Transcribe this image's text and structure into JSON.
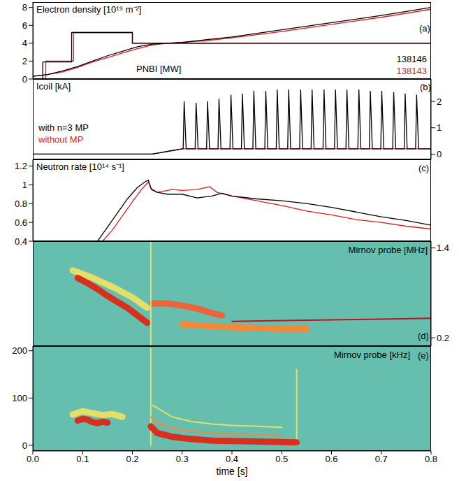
{
  "chart_data": [
    {
      "type": "line",
      "title": "Electron density [10¹⁹ m⁻²]",
      "annotations": [
        "(a)",
        "PNBI [MW]"
      ],
      "legend": "lower right",
      "tick_labels": "y",
      "xlim": [
        0,
        0.8
      ],
      "xticks": [
        {
          "value": 0,
          "label": "0.0"
        },
        0.1,
        0.2,
        0.3,
        0.4,
        0.5,
        0.6,
        0.7,
        0.8
      ],
      "ylim": [
        0,
        8.6
      ],
      "yticks": [
        0,
        2,
        4,
        6,
        8
      ],
      "series": [
        {
          "name": "138146",
          "color": "#000000",
          "line_style": "solid",
          "x": [
            0,
            0.03,
            0.06,
            0.09,
            0.12,
            0.15,
            0.18,
            0.21,
            0.24,
            0.27,
            0.3,
            0.35,
            0.4,
            0.5,
            0.6,
            0.7,
            0.8
          ],
          "values": [
            0.3,
            0.5,
            0.9,
            1.4,
            2.0,
            2.6,
            3.1,
            3.6,
            3.9,
            4.0,
            4.1,
            4.4,
            4.7,
            5.5,
            6.3,
            7.1,
            8.0
          ]
        },
        {
          "name": "138143",
          "color": "#e41a1c",
          "line_style": "solid",
          "x": [
            0,
            0.03,
            0.06,
            0.09,
            0.12,
            0.15,
            0.18,
            0.21,
            0.24,
            0.27,
            0.3,
            0.35,
            0.4,
            0.5,
            0.6,
            0.7,
            0.8
          ],
          "values": [
            0.3,
            0.5,
            0.8,
            1.3,
            1.9,
            2.4,
            2.9,
            3.4,
            3.8,
            4.0,
            4.1,
            4.3,
            4.6,
            5.3,
            6.1,
            6.9,
            7.8
          ]
        },
        {
          "name": "138146",
          "color": "#000000",
          "line_style": "solid",
          "x": [
            0,
            0.02,
            0.02,
            0.078,
            0.078,
            0.2,
            0.2,
            0.8
          ],
          "values": [
            0,
            0,
            1.9,
            1.9,
            5.2,
            5.2,
            4,
            4
          ]
        },
        {
          "name": "138143",
          "color": "#e41a1c",
          "line_style": "solid",
          "x": [
            0,
            0.026,
            0.026,
            0.082,
            0.082,
            0.2,
            0.2,
            0.8
          ],
          "values": [
            0,
            0,
            2,
            2,
            5.2,
            5.2,
            4,
            4
          ]
        }
      ]
    },
    {
      "type": "line",
      "title": "Icoil [kA]",
      "annotations": [
        "(b)"
      ],
      "legend": "lower left",
      "tick_labels": "y",
      "xlim": [
        0,
        0.8
      ],
      "xticks": [
        {
          "value": 0,
          "label": "0.0"
        },
        0.1,
        0.2,
        0.3,
        0.4,
        0.5,
        0.6,
        0.7,
        0.8
      ],
      "y2lim": [
        -0.2,
        2.85
      ],
      "y2ticks": [
        0,
        1,
        2
      ],
      "series": [
        {
          "name": "with n=3 MP",
          "color": "#000000",
          "line_style": "solid",
          "axis": "y2",
          "x": [
            0,
            0.24,
            0.3,
            0.302,
            0.304,
            0.308,
            0.326,
            0.328,
            0.332,
            0.349,
            0.351,
            0.355,
            0.372,
            0.374,
            0.378,
            0.396,
            0.398,
            0.402,
            0.419,
            0.421,
            0.425,
            0.442,
            0.444,
            0.448,
            0.466,
            0.468,
            0.472,
            0.489,
            0.491,
            0.495,
            0.512,
            0.514,
            0.518,
            0.536,
            0.538,
            0.542,
            0.559,
            0.561,
            0.565,
            0.583,
            0.585,
            0.589,
            0.606,
            0.608,
            0.612,
            0.629,
            0.631,
            0.635,
            0.653,
            0.655,
            0.659,
            0.676,
            0.678,
            0.682,
            0.699,
            0.701,
            0.705,
            0.723,
            0.725,
            0.729,
            0.746,
            0.748,
            0.752,
            0.769,
            0.771,
            0.775,
            0.8
          ],
          "values": [
            0,
            0,
            0.2,
            0.2,
            2.0,
            0.2,
            0.2,
            1.95,
            0.2,
            0.2,
            2.0,
            0.2,
            0.2,
            2.1,
            0.2,
            0.2,
            2.25,
            0.2,
            0.2,
            2.3,
            0.2,
            0.2,
            2.4,
            0.2,
            0.2,
            2.4,
            0.2,
            0.2,
            2.45,
            0.2,
            0.2,
            2.45,
            0.2,
            0.2,
            2.45,
            0.2,
            0.2,
            2.45,
            0.2,
            0.2,
            2.45,
            0.2,
            0.2,
            2.45,
            0.2,
            0.2,
            2.45,
            0.2,
            0.2,
            2.45,
            0.2,
            0.2,
            2.4,
            0.2,
            0.2,
            2.4,
            0.2,
            0.2,
            2.35,
            0.2,
            0.2,
            2.3,
            0.2,
            0.2,
            2.25,
            0.2,
            0.2
          ]
        },
        {
          "name": "without MP",
          "color": "#e41a1c",
          "line_style": "solid",
          "axis": "y2",
          "x": [
            0,
            0.24,
            0.3,
            0.8
          ],
          "values": [
            0,
            0,
            0.2,
            0.2
          ]
        }
      ]
    },
    {
      "type": "line",
      "title": "Neutron rate [10¹⁴ s⁻¹]",
      "annotations": [
        "(c)"
      ],
      "tick_labels": "y",
      "xlim": [
        0,
        0.8
      ],
      "xticks": [
        {
          "value": 0,
          "label": "0.0"
        },
        0.1,
        0.2,
        0.3,
        0.4,
        0.5,
        0.6,
        0.7,
        0.8
      ],
      "ylim": [
        0.4,
        1.27
      ],
      "yticks": [
        0.4,
        0.6,
        0.8,
        1,
        1.2
      ],
      "series": [
        {
          "name": "138146",
          "color": "#000000",
          "line_style": "solid",
          "x": [
            0.13,
            0.15,
            0.17,
            0.19,
            0.21,
            0.225,
            0.232,
            0.238,
            0.25,
            0.27,
            0.3,
            0.33,
            0.36,
            0.38,
            0.4,
            0.45,
            0.5,
            0.55,
            0.6,
            0.65,
            0.7,
            0.75,
            0.8
          ],
          "values": [
            0.4,
            0.55,
            0.7,
            0.85,
            0.97,
            1.03,
            1.05,
            0.95,
            0.92,
            0.9,
            0.9,
            0.86,
            0.88,
            0.91,
            0.88,
            0.85,
            0.83,
            0.8,
            0.76,
            0.71,
            0.66,
            0.62,
            0.57
          ]
        },
        {
          "name": "138143",
          "color": "#e41a1c",
          "line_style": "solid",
          "x": [
            0.14,
            0.16,
            0.18,
            0.2,
            0.22,
            0.232,
            0.238,
            0.25,
            0.28,
            0.3,
            0.33,
            0.355,
            0.37,
            0.4,
            0.45,
            0.5,
            0.55,
            0.6,
            0.65,
            0.7,
            0.75,
            0.8
          ],
          "values": [
            0.4,
            0.52,
            0.67,
            0.82,
            0.96,
            1.03,
            0.96,
            0.92,
            0.95,
            0.94,
            0.95,
            0.98,
            0.92,
            0.88,
            0.83,
            0.78,
            0.72,
            0.68,
            0.63,
            0.6,
            0.56,
            0.53
          ]
        }
      ]
    },
    {
      "type": "spectrogram",
      "title": "Mirnov probe [MHz]",
      "annotations": [
        "(d)"
      ],
      "tick_labels": "y",
      "xlim": [
        0,
        0.8
      ],
      "xticks": [
        {
          "value": 0,
          "label": "0.0"
        },
        0.1,
        0.2,
        0.3,
        0.4,
        0.5,
        0.6,
        0.7,
        0.8
      ],
      "y2lim": [
        0.09,
        1.49
      ],
      "y2ticks": [
        0.2,
        1.4
      ],
      "series": [
        {
          "color": "#e3df6a",
          "line_style": "band",
          "axis": "y2",
          "x": [
            0.08,
            0.12,
            0.16,
            0.2,
            0.23
          ],
          "values": [
            1.1,
            1.0,
            0.88,
            0.74,
            0.6
          ]
        },
        {
          "color": "#d7301f",
          "line_style": "band",
          "axis": "y2",
          "x": [
            0.09,
            0.11,
            0.13,
            0.15,
            0.17,
            0.19,
            0.21,
            0.23
          ],
          "values": [
            1.0,
            0.93,
            0.85,
            0.76,
            0.68,
            0.6,
            0.5,
            0.4
          ]
        },
        {
          "color": "#e8663a",
          "line_style": "band",
          "axis": "y2",
          "x": [
            0.24,
            0.27,
            0.3,
            0.33,
            0.36,
            0.38
          ],
          "values": [
            0.66,
            0.66,
            0.63,
            0.59,
            0.53,
            0.5
          ]
        },
        {
          "color": "#f08a3a",
          "line_style": "band",
          "axis": "y2",
          "x": [
            0.3,
            0.35,
            0.4,
            0.45,
            0.5,
            0.55
          ],
          "values": [
            0.38,
            0.36,
            0.34,
            0.33,
            0.32,
            0.32
          ]
        },
        {
          "color": "#c0141c",
          "line_style": "thin",
          "axis": "y2",
          "x": [
            0.4,
            0.5,
            0.6,
            0.7,
            0.8
          ],
          "values": [
            0.42,
            0.43,
            0.44,
            0.45,
            0.46
          ]
        },
        {
          "color": "#e3df6a",
          "line_style": "thin",
          "axis": "y2",
          "x": [
            0.237,
            0.237
          ],
          "values": [
            0.09,
            1.49
          ]
        }
      ]
    },
    {
      "type": "spectrogram",
      "title": "Mirnov probe [kHz]",
      "annotations": [
        "(e)"
      ],
      "xlabel": "time [s]",
      "xlim": [
        0,
        0.8
      ],
      "xticks": [
        {
          "value": 0,
          "label": "0.0"
        },
        0.1,
        0.2,
        0.3,
        0.4,
        0.5,
        0.6,
        0.7,
        0.8
      ],
      "ylim": [
        -12,
        210
      ],
      "yticks": [
        0,
        100,
        200
      ],
      "series": [
        {
          "color": "#e3df6a",
          "line_style": "band",
          "x": [
            0.08,
            0.1,
            0.12,
            0.14,
            0.16,
            0.18
          ],
          "values": [
            65,
            72,
            68,
            64,
            66,
            60
          ]
        },
        {
          "color": "#d7301f",
          "line_style": "band",
          "x": [
            0.09,
            0.1,
            0.11,
            0.12,
            0.13,
            0.14,
            0.15
          ],
          "values": [
            52,
            56,
            54,
            49,
            47,
            50,
            48
          ]
        },
        {
          "color": "#e3df6a",
          "line_style": "thin",
          "x": [
            0.237,
            0.237
          ],
          "values": [
            0,
            205
          ]
        },
        {
          "color": "#e3df6a",
          "line_style": "thin",
          "x": [
            0.53,
            0.53
          ],
          "values": [
            0,
            160
          ]
        },
        {
          "color": "#e3df6a",
          "line_style": "thin",
          "x": [
            0.24,
            0.28,
            0.32,
            0.36,
            0.4,
            0.45,
            0.5
          ],
          "values": [
            85,
            60,
            50,
            45,
            42,
            40,
            38
          ]
        },
        {
          "color": "#f08a3a",
          "line_style": "thin",
          "x": [
            0.237,
            0.26,
            0.3,
            0.35,
            0.4,
            0.45,
            0.5
          ],
          "values": [
            60,
            42,
            32,
            27,
            24,
            22,
            20
          ]
        },
        {
          "color": "#d7301f",
          "line_style": "band",
          "x": [
            0.237,
            0.25,
            0.28,
            0.32,
            0.36,
            0.4,
            0.45,
            0.5,
            0.53
          ],
          "values": [
            40,
            26,
            18,
            13,
            10,
            9,
            8,
            7,
            6
          ]
        }
      ]
    }
  ]
}
